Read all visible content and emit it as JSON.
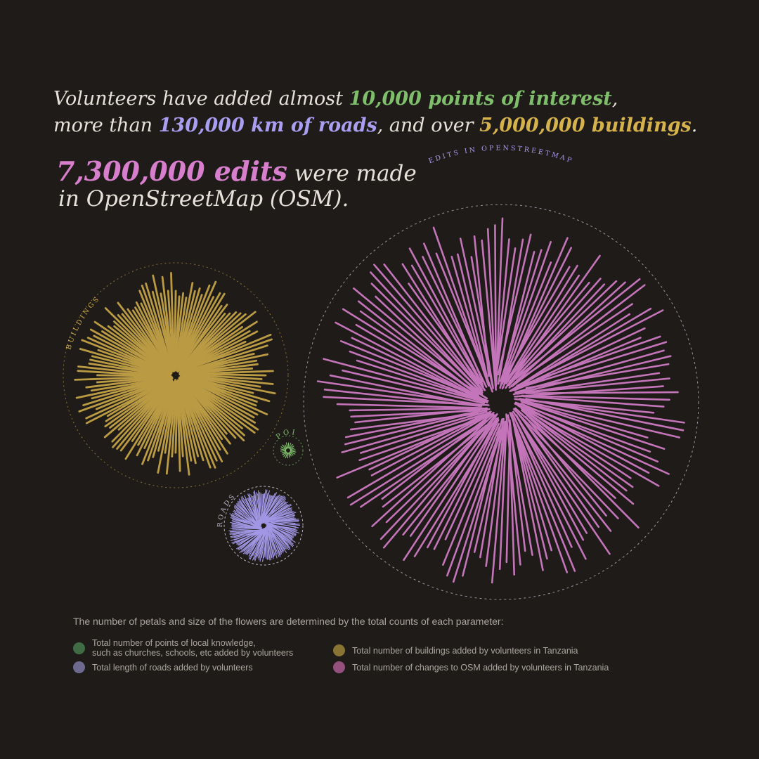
{
  "headline": {
    "l1_a": "Volunteers have added almost ",
    "l1_hl": "10,000 points of interest",
    "l1_b": ",",
    "l2_a": "more than ",
    "l2_hl": "130,000 km of roads",
    "l2_b": ", and over ",
    "l2_hl2": "5,000,000 buildings",
    "l2_c": "."
  },
  "edits": {
    "number": "7,300,000 edits",
    "suffix": " were made",
    "line2": "in OpenStreetMap (OSM)."
  },
  "flower_labels": {
    "edits": "EDITS IN OPENSTREETMAP",
    "buildings": "BUILDINGS",
    "poi": "POI",
    "roads": "ROADS"
  },
  "legend": {
    "intro": "The number of petals and size of the flowers are determined by the total counts of each parameter:",
    "items": [
      {
        "key": "poi",
        "line1": "Total number of points of local knowledge,",
        "line2": "such as churches, schools, etc added by volunteers"
      },
      {
        "key": "buildings",
        "line1": "Total number of buildings added by volunteers in Tanzania",
        "line2": ""
      },
      {
        "key": "roads",
        "line1": "Total length of roads added by volunteers",
        "line2": ""
      },
      {
        "key": "edits",
        "line1": "Total number of changes to OSM added by volunteers in Tanzania",
        "line2": ""
      }
    ]
  },
  "colors": {
    "background": "#1e1b18",
    "text": "#e6e2da",
    "poi": "#7fbf6b",
    "roads": "#a99ef0",
    "buildings": "#d6b24c",
    "edits": "#d77fcc",
    "legend_poi": "#3f6b45",
    "legend_roads": "#6e6a8f",
    "legend_buildings": "#8a7434",
    "legend_edits": "#94517d"
  }
}
